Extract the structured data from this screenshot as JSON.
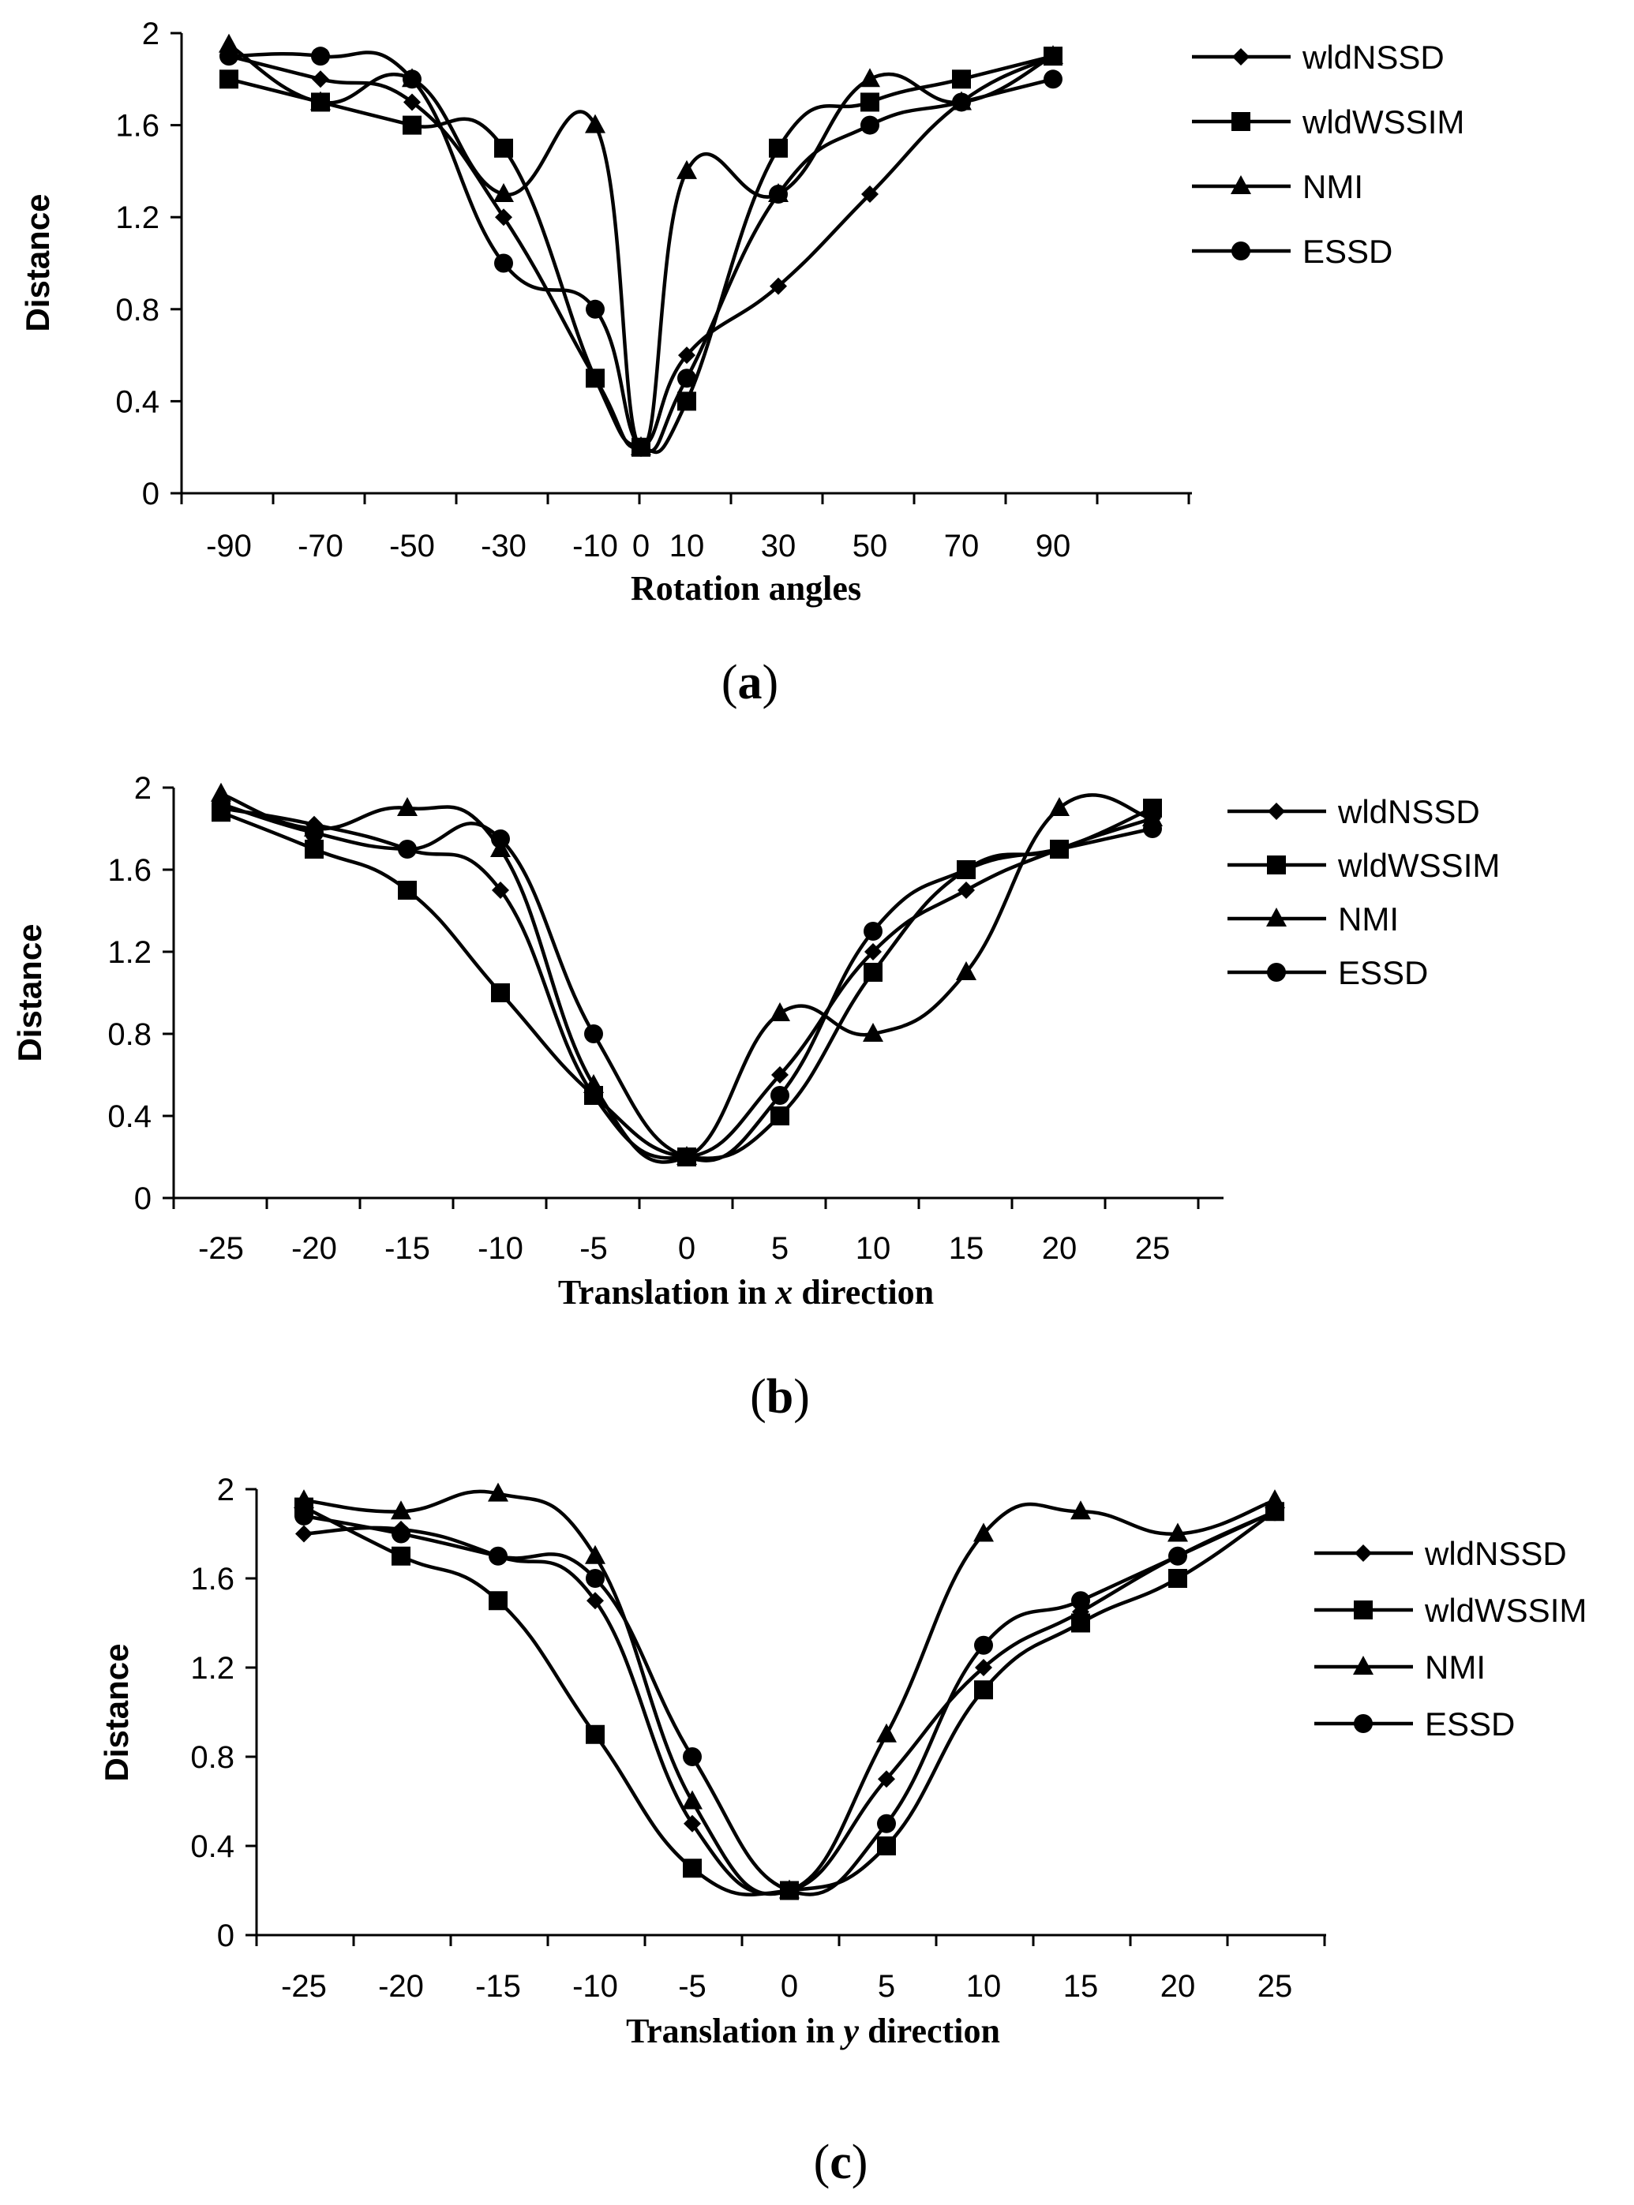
{
  "chart_data": [
    {
      "type": "line",
      "panel": "a",
      "caption_letter": "a",
      "x": [
        -90,
        -70,
        -50,
        -30,
        -10,
        0,
        10,
        30,
        50,
        70,
        90
      ],
      "x_tick_labels": [
        "-90",
        "-70",
        "-50",
        "-30",
        "-10",
        "0",
        "10",
        "30",
        "50",
        "70",
        "90"
      ],
      "y_tick_labels": [
        "0",
        "0.4",
        "0.8",
        "1.2",
        "1.6",
        "2"
      ],
      "ylim": [
        0,
        2
      ],
      "ylabel": "Distance",
      "xlabel_parts": [
        "Rotation angles"
      ],
      "legend": [
        "wldNSSD",
        "wldWSSIM",
        "NMI",
        "ESSD"
      ],
      "series": [
        {
          "name": "wldNSSD",
          "marker": "diamond",
          "values": [
            1.9,
            1.8,
            1.7,
            1.2,
            0.5,
            0.2,
            0.6,
            0.9,
            1.3,
            1.7,
            1.9
          ]
        },
        {
          "name": "wldWSSIM",
          "marker": "square",
          "values": [
            1.8,
            1.7,
            1.6,
            1.5,
            0.5,
            0.2,
            0.4,
            1.5,
            1.7,
            1.8,
            1.9
          ]
        },
        {
          "name": "NMI",
          "marker": "triangle",
          "values": [
            1.95,
            1.7,
            1.8,
            1.3,
            1.6,
            0.2,
            1.4,
            1.3,
            1.8,
            1.7,
            1.9
          ]
        },
        {
          "name": "ESSD",
          "marker": "circle",
          "values": [
            1.9,
            1.9,
            1.8,
            1.0,
            0.8,
            0.2,
            0.5,
            1.3,
            1.6,
            1.7,
            1.8
          ]
        }
      ]
    },
    {
      "type": "line",
      "panel": "b",
      "caption_letter": "b",
      "x": [
        -25,
        -20,
        -15,
        -10,
        -5,
        0,
        5,
        10,
        15,
        20,
        25
      ],
      "x_tick_labels": [
        "-25",
        "-20",
        "-15",
        "-10",
        "-5",
        "0",
        "5",
        "10",
        "15",
        "20",
        "25"
      ],
      "y_tick_labels": [
        "0",
        "0.4",
        "0.8",
        "1.2",
        "1.6",
        "2"
      ],
      "ylim": [
        0,
        2
      ],
      "ylabel": "Distance",
      "xlabel_parts": [
        "Translation in ",
        "x",
        " direction"
      ],
      "legend": [
        "wldNSSD",
        "wldWSSIM",
        "NMI",
        "ESSD"
      ],
      "series": [
        {
          "name": "wldNSSD",
          "marker": "diamond",
          "values": [
            1.9,
            1.82,
            1.7,
            1.5,
            0.5,
            0.2,
            0.6,
            1.2,
            1.5,
            1.7,
            1.85
          ]
        },
        {
          "name": "wldWSSIM",
          "marker": "square",
          "values": [
            1.88,
            1.7,
            1.5,
            1.0,
            0.5,
            0.2,
            0.4,
            1.1,
            1.6,
            1.7,
            1.9
          ]
        },
        {
          "name": "NMI",
          "marker": "triangle",
          "values": [
            1.97,
            1.8,
            1.9,
            1.7,
            0.55,
            0.2,
            0.9,
            0.8,
            1.1,
            1.9,
            1.85
          ]
        },
        {
          "name": "ESSD",
          "marker": "circle",
          "values": [
            1.92,
            1.78,
            1.7,
            1.75,
            0.8,
            0.2,
            0.5,
            1.3,
            1.6,
            1.7,
            1.8
          ]
        }
      ]
    },
    {
      "type": "line",
      "panel": "c",
      "caption_letter": "c",
      "x": [
        -25,
        -20,
        -15,
        -10,
        -5,
        0,
        5,
        10,
        15,
        20,
        25
      ],
      "x_tick_labels": [
        "-25",
        "-20",
        "-15",
        "-10",
        "-5",
        "0",
        "5",
        "10",
        "15",
        "20",
        "25"
      ],
      "y_tick_labels": [
        "0",
        "0.4",
        "0.8",
        "1.2",
        "1.6",
        "2"
      ],
      "ylim": [
        0,
        2
      ],
      "ylabel": "Distance",
      "xlabel_parts": [
        "Translation in ",
        "y",
        " direction"
      ],
      "legend": [
        "wldNSSD",
        "wldWSSIM",
        "NMI",
        "ESSD"
      ],
      "series": [
        {
          "name": "wldNSSD",
          "marker": "diamond",
          "values": [
            1.8,
            1.82,
            1.7,
            1.5,
            0.5,
            0.2,
            0.7,
            1.2,
            1.45,
            1.7,
            1.9
          ]
        },
        {
          "name": "wldWSSIM",
          "marker": "square",
          "values": [
            1.92,
            1.7,
            1.5,
            0.9,
            0.3,
            0.2,
            0.4,
            1.1,
            1.4,
            1.6,
            1.9
          ]
        },
        {
          "name": "NMI",
          "marker": "triangle",
          "values": [
            1.95,
            1.9,
            1.98,
            1.7,
            0.6,
            0.2,
            0.9,
            1.8,
            1.9,
            1.8,
            1.95
          ]
        },
        {
          "name": "ESSD",
          "marker": "circle",
          "values": [
            1.88,
            1.8,
            1.7,
            1.6,
            0.8,
            0.2,
            0.5,
            1.3,
            1.5,
            1.7,
            1.9
          ]
        }
      ]
    }
  ]
}
